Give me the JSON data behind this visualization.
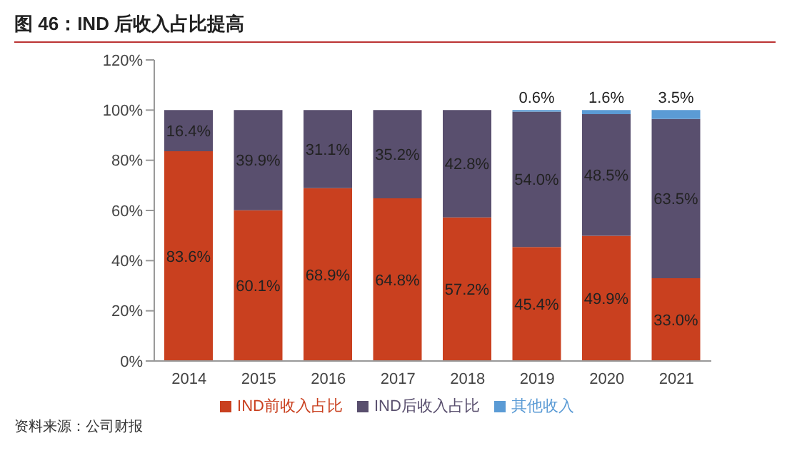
{
  "chart_data": {
    "type": "bar",
    "title": "图 46：IND 后收入占比提高",
    "stacked": true,
    "categories": [
      "2014",
      "2015",
      "2016",
      "2017",
      "2018",
      "2019",
      "2020",
      "2021"
    ],
    "series": [
      {
        "name": "IND前收入占比",
        "color": "#c9401f",
        "values": [
          83.6,
          60.1,
          68.9,
          64.8,
          57.2,
          45.4,
          49.9,
          33.0
        ],
        "value_labels": [
          "83.6%",
          "60.1%",
          "68.9%",
          "64.8%",
          "57.2%",
          "45.4%",
          "49.9%",
          "33.0%"
        ]
      },
      {
        "name": "IND后收入占比",
        "color": "#594f6e",
        "values": [
          16.4,
          39.9,
          31.1,
          35.2,
          42.8,
          54.0,
          48.5,
          63.5
        ],
        "value_labels": [
          "16.4%",
          "39.9%",
          "31.1%",
          "35.2%",
          "42.8%",
          "54.0%",
          "48.5%",
          "63.5%"
        ]
      },
      {
        "name": "其他收入",
        "color": "#5b9bd5",
        "values": [
          null,
          null,
          null,
          null,
          null,
          0.6,
          1.6,
          3.5
        ],
        "value_labels": [
          null,
          null,
          null,
          null,
          null,
          "0.6%",
          "1.6%",
          "3.5%"
        ]
      }
    ],
    "ylim": [
      0,
      120
    ],
    "yticks": [
      {
        "value": 0,
        "label": "0%"
      },
      {
        "value": 20,
        "label": "20%"
      },
      {
        "value": 40,
        "label": "40%"
      },
      {
        "value": 60,
        "label": "60%"
      },
      {
        "value": 80,
        "label": "80%"
      },
      {
        "value": 100,
        "label": "100%"
      },
      {
        "value": 120,
        "label": "120%"
      }
    ],
    "legend": "bottom",
    "annotations": [
      "资料来源：公司财报"
    ]
  }
}
